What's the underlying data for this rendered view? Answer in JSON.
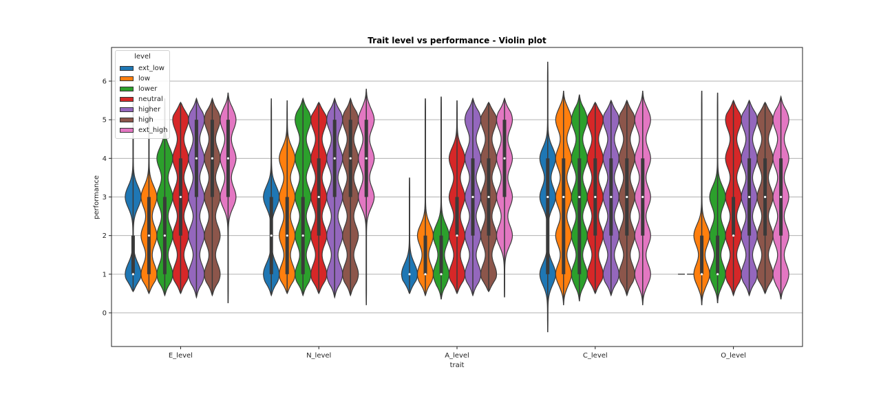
{
  "chart_data": {
    "type": "violin",
    "title": "Trait level vs performance - Violin plot",
    "xlabel": "trait",
    "ylabel": "performance",
    "ylim": [
      -0.9,
      6.85
    ],
    "yticks": [
      0,
      1,
      2,
      3,
      4,
      5,
      6
    ],
    "grid": "horizontal",
    "categories": [
      "E_level",
      "N_level",
      "A_level",
      "C_level",
      "O_level"
    ],
    "legend": {
      "title": "level",
      "placement": "top-left",
      "entries": [
        "ext_low",
        "low",
        "lower",
        "neutral",
        "higher",
        "high",
        "ext_high"
      ]
    },
    "colors": [
      "#1f77b4",
      "#ff7f0e",
      "#2ca02c",
      "#d62728",
      "#9467bd",
      "#8c564b",
      "#e377c2"
    ],
    "series": [
      {
        "name": "ext_low",
        "min": [
          0.55,
          0.45,
          0.5,
          -0.5,
          1.0
        ],
        "max": [
          5.5,
          5.55,
          3.5,
          6.5,
          1.0
        ],
        "median": [
          1,
          2,
          1,
          3,
          1
        ],
        "q1": [
          1,
          1,
          1,
          1,
          1
        ],
        "q3": [
          2,
          3,
          1,
          4,
          1
        ],
        "modes": [
          [
            1,
            3
          ],
          [
            1,
            3
          ],
          [
            1
          ],
          [
            1,
            3,
            4
          ],
          [
            1
          ]
        ]
      },
      {
        "name": "low",
        "min": [
          0.5,
          0.5,
          0.45,
          0.2,
          0.2
        ],
        "max": [
          5.5,
          5.5,
          5.55,
          5.75,
          5.75
        ],
        "median": [
          2,
          2,
          1,
          3,
          1
        ],
        "q1": [
          1,
          1,
          1,
          1,
          1
        ],
        "q3": [
          3,
          3,
          2,
          4,
          2
        ],
        "modes": [
          [
            1,
            2,
            3
          ],
          [
            1,
            2,
            3,
            4
          ],
          [
            1,
            2
          ],
          [
            1,
            2,
            3,
            4,
            5
          ],
          [
            1,
            2
          ]
        ]
      },
      {
        "name": "lower",
        "min": [
          0.45,
          0.45,
          0.35,
          0.3,
          0.25
        ],
        "max": [
          5.55,
          5.55,
          5.6,
          5.65,
          5.7
        ],
        "median": [
          2,
          2,
          1,
          3,
          1
        ],
        "q1": [
          1,
          1,
          1,
          1,
          1
        ],
        "q3": [
          3,
          3,
          2,
          4,
          2
        ],
        "modes": [
          [
            1,
            2,
            3,
            4
          ],
          [
            1,
            2,
            3,
            4,
            5
          ],
          [
            1,
            2
          ],
          [
            1,
            2,
            3,
            4,
            5
          ],
          [
            1,
            2,
            3
          ]
        ]
      },
      {
        "name": "neutral",
        "min": [
          0.5,
          0.5,
          0.5,
          0.5,
          0.45
        ],
        "max": [
          5.45,
          5.45,
          5.5,
          5.45,
          5.5
        ],
        "median": [
          3,
          3,
          2,
          3,
          2
        ],
        "q1": [
          2,
          2,
          2,
          2,
          2
        ],
        "q3": [
          4,
          4,
          3,
          4,
          3
        ],
        "modes": [
          [
            1,
            2,
            3,
            4,
            5
          ],
          [
            1,
            2,
            3,
            4,
            5
          ],
          [
            1,
            2,
            3,
            4
          ],
          [
            1,
            2,
            3,
            4,
            5
          ],
          [
            1,
            2,
            3,
            4,
            5
          ]
        ]
      },
      {
        "name": "higher",
        "min": [
          0.4,
          0.4,
          0.45,
          0.45,
          0.45
        ],
        "max": [
          5.55,
          5.55,
          5.55,
          5.5,
          5.5
        ],
        "median": [
          4,
          4,
          3,
          3,
          3
        ],
        "q1": [
          3,
          3,
          2,
          2,
          2
        ],
        "q3": [
          5,
          5,
          4,
          4,
          4
        ],
        "modes": [
          [
            1,
            2,
            3,
            4,
            5
          ],
          [
            1,
            2,
            3,
            4,
            5
          ],
          [
            1,
            2,
            3,
            4,
            5
          ],
          [
            1,
            2,
            3,
            4,
            5
          ],
          [
            1,
            2,
            3,
            4,
            5
          ]
        ]
      },
      {
        "name": "high",
        "min": [
          0.45,
          0.45,
          0.55,
          0.45,
          0.5
        ],
        "max": [
          5.55,
          5.55,
          5.45,
          5.5,
          5.45
        ],
        "median": [
          4,
          4,
          3,
          3,
          3
        ],
        "q1": [
          3,
          3,
          2,
          2,
          2
        ],
        "q3": [
          5,
          5,
          4,
          4,
          4
        ],
        "modes": [
          [
            1,
            2,
            3,
            4,
            5
          ],
          [
            1,
            2,
            3,
            4,
            5
          ],
          [
            1,
            2,
            3,
            4,
            5
          ],
          [
            1,
            2,
            3,
            4,
            5
          ],
          [
            1,
            2,
            3,
            4,
            5
          ]
        ]
      },
      {
        "name": "ext_high",
        "min": [
          0.25,
          0.2,
          0.4,
          0.2,
          0.35
        ],
        "max": [
          5.7,
          5.8,
          5.55,
          5.75,
          5.6
        ],
        "median": [
          4,
          4,
          4,
          3,
          3
        ],
        "q1": [
          3,
          3,
          3,
          2,
          2
        ],
        "q3": [
          5,
          5,
          5,
          4,
          4
        ],
        "modes": [
          [
            3,
            4,
            5
          ],
          [
            3,
            4,
            5
          ],
          [
            2,
            3,
            4,
            5
          ],
          [
            1,
            2,
            3,
            4,
            5
          ],
          [
            1,
            2,
            3,
            4,
            5
          ]
        ]
      }
    ]
  }
}
